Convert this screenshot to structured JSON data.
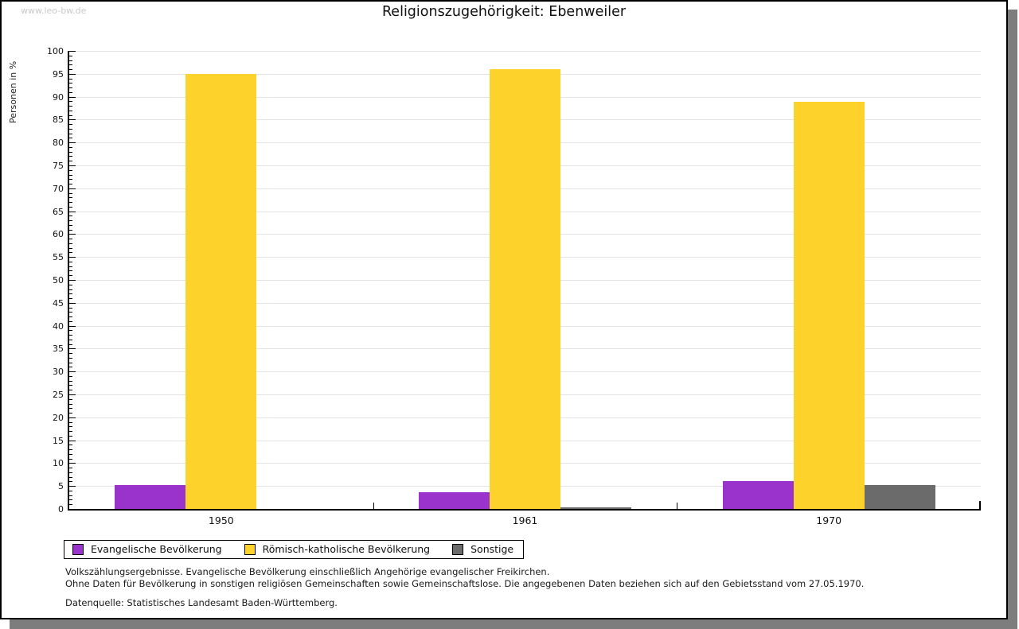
{
  "watermark": "www.leo-bw.de",
  "title": "Religionszugehörigkeit: Ebenweiler",
  "chart_data": {
    "type": "bar",
    "title": "Religionszugehörigkeit: Ebenweiler",
    "xlabel": "",
    "ylabel": "Personen in %",
    "ylim": [
      0,
      100
    ],
    "ytick_major_step": 5,
    "ytick_minor_step": 1,
    "grid": true,
    "legend_position": "bottom-left",
    "categories": [
      "1950",
      "1961",
      "1970"
    ],
    "series": [
      {
        "name": "Evangelische Bevölkerung",
        "color": "#9933cc",
        "values": [
          5.2,
          3.7,
          6.1
        ]
      },
      {
        "name": "Römisch-katholische Bevölkerung",
        "color": "#fdd32b",
        "values": [
          95.0,
          96.0,
          88.9
        ]
      },
      {
        "name": "Sonstige",
        "color": "#6b6b6b",
        "values": [
          0.0,
          0.4,
          5.2
        ]
      }
    ]
  },
  "footnotes": {
    "line1": "Volkszählungsergebnisse. Evangelische Bevölkerung einschließlich Angehörige evangelischer Freikirchen.",
    "line2": "Ohne Daten für Bevölkerung in sonstigen religiösen Gemeinschaften sowie Gemeinschaftslose. Die angegebenen Daten beziehen sich auf den Gebietsstand vom 27.05.1970.",
    "source": "Datenquelle: Statistisches Landesamt Baden-Württemberg."
  }
}
